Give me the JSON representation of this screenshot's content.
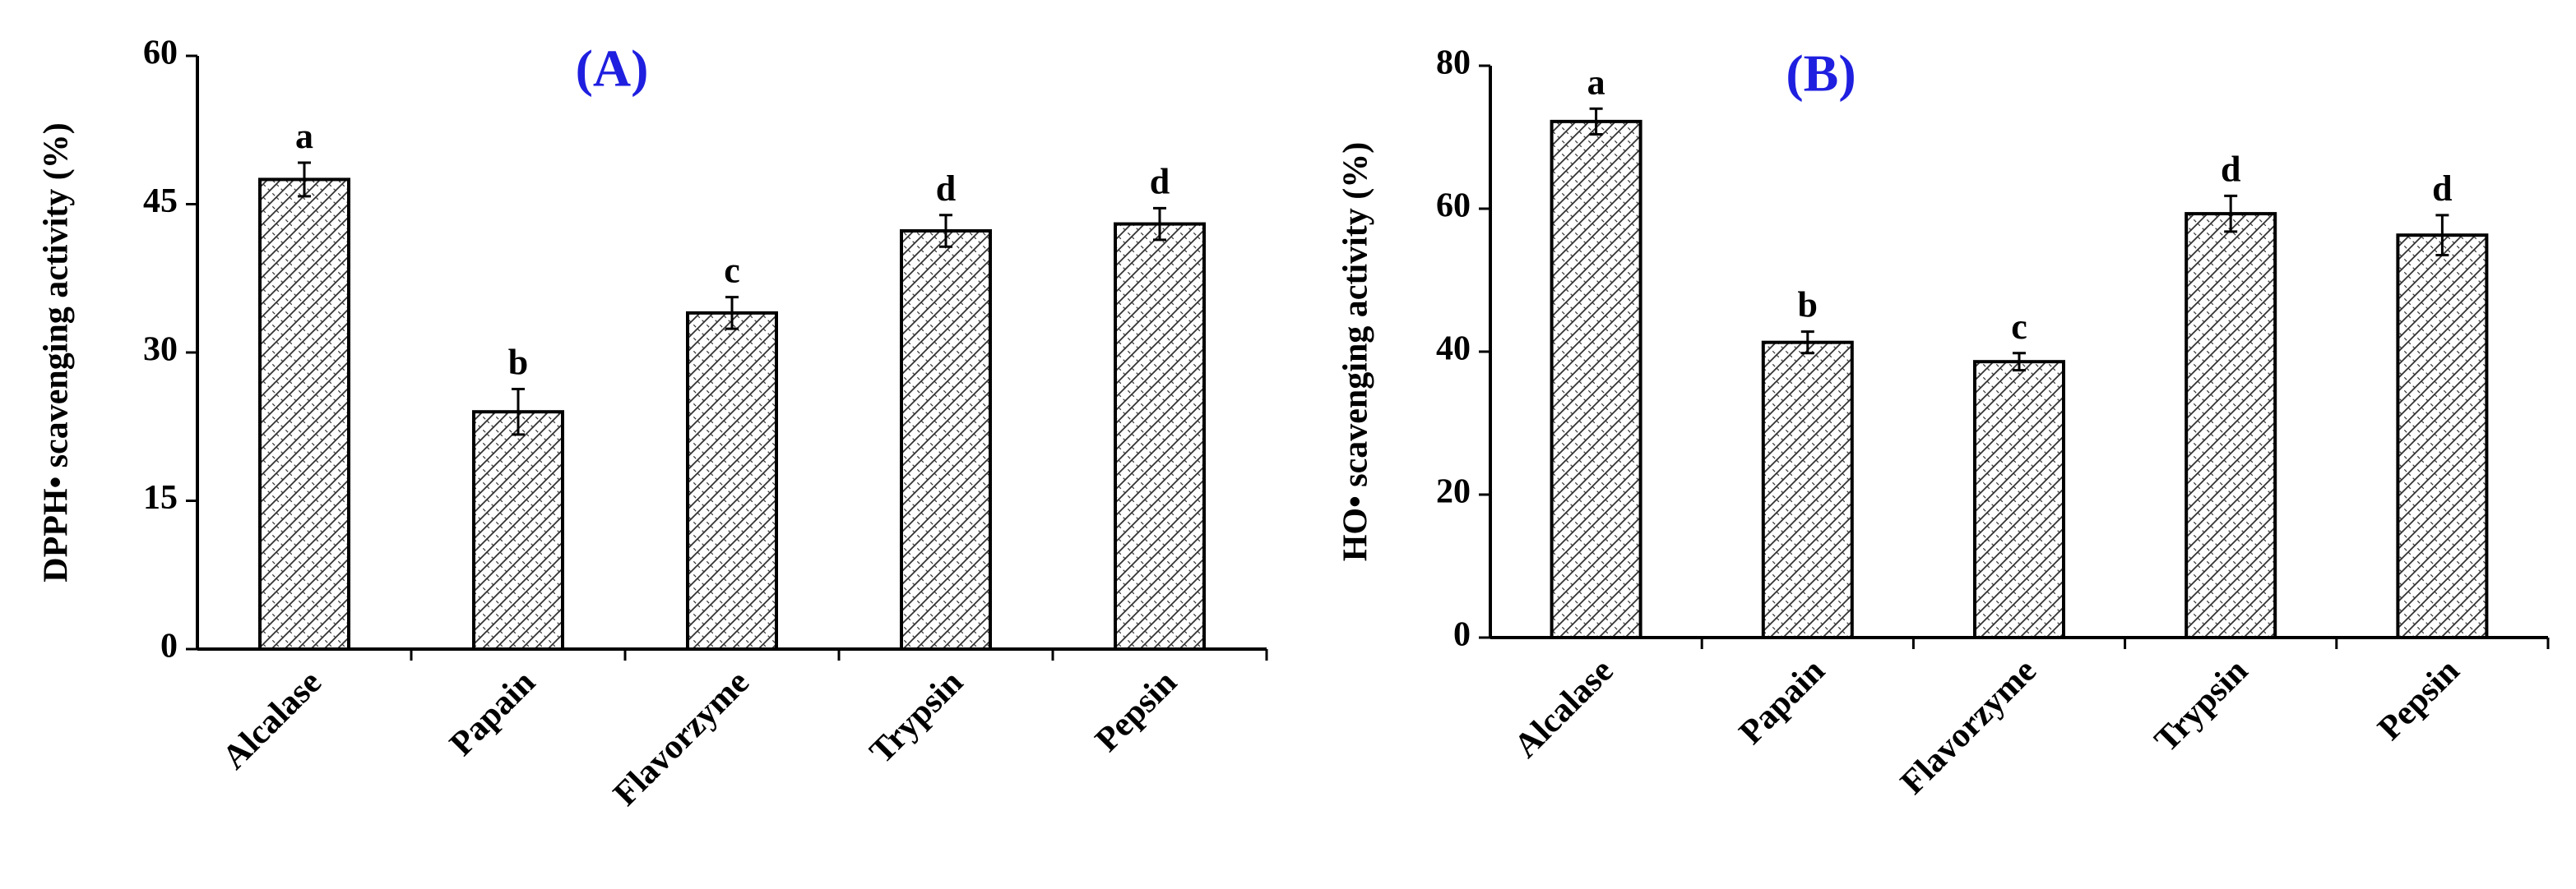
{
  "chart_data": [
    {
      "type": "bar",
      "title": "(A)",
      "y_label": "DPPH• scavenging activity (%)",
      "categories": [
        "Alcalase",
        "Papain",
        "Flavorzyme",
        "Trypsin",
        "Pepsin"
      ],
      "values": [
        47.5,
        24,
        34,
        42.3,
        43
      ],
      "errors": [
        1.7,
        2.3,
        1.6,
        1.6,
        1.6
      ],
      "labels": [
        "a",
        "b",
        "c",
        "d",
        "d"
      ],
      "color": "#000000",
      "ylim": [
        0,
        60
      ],
      "yticks": [
        0,
        15,
        30,
        45,
        60
      ]
    },
    {
      "type": "bar",
      "title": "(B)",
      "y_label": "HO• scavenging activity (%)",
      "categories": [
        "Alcalase",
        "Papain",
        "Flavorzyme",
        "Trypsin",
        "Pepsin"
      ],
      "values": [
        72.2,
        41.3,
        38.6,
        59.3,
        56.3
      ],
      "errors": [
        1.8,
        1.5,
        1.2,
        2.5,
        2.8
      ],
      "labels": [
        "a",
        "b",
        "c",
        "d",
        "d"
      ],
      "color": "#000000",
      "ylim": [
        0,
        80
      ],
      "yticks": [
        0,
        20,
        40,
        60,
        80
      ]
    }
  ]
}
